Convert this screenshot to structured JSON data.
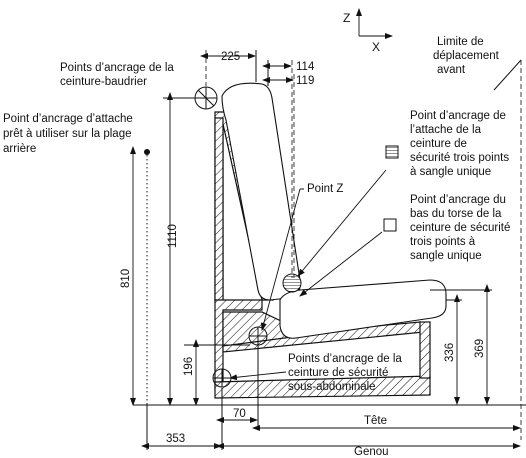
{
  "axes": {
    "z": "Z",
    "x": "X"
  },
  "labels": {
    "limit_line1": "Limite de",
    "limit_line2": "déplacement",
    "limit_line3": "avant",
    "shoulder_line1": "Points d’ancrage de la",
    "shoulder_line2": "ceinture-baudrier",
    "rear_line1": "Point d’ancrage d’attache",
    "rear_line2": "prêt à utiliser sur la plage",
    "rear_line3": "arrière",
    "pointz": "Point Z",
    "tether_line1": "Point d’ancrage de",
    "tether_line2": "l’attache de la",
    "tether_line3": "ceinture de",
    "tether_line4": "sécurité trois points",
    "tether_line5": "à sangle unique",
    "torso_line1": "Point d’ancrage du",
    "torso_line2": "bas du torse de la",
    "torso_line3": "ceinture de sécurité",
    "torso_line4": "trois points à",
    "torso_line5": "sangle unique",
    "lap_line1": "Points d’ancrage de la",
    "lap_line2": "ceinture de sécurité",
    "lap_line3": "sous-abdominale"
  },
  "dimensions": {
    "d225": "225",
    "d114": "114",
    "d119": "119",
    "d1110": "1110",
    "d810": "810",
    "d196": "196",
    "d336": "336",
    "d369": "369",
    "d70": "70",
    "d353": "353",
    "tete": "Tête",
    "genou": "Genou"
  }
}
